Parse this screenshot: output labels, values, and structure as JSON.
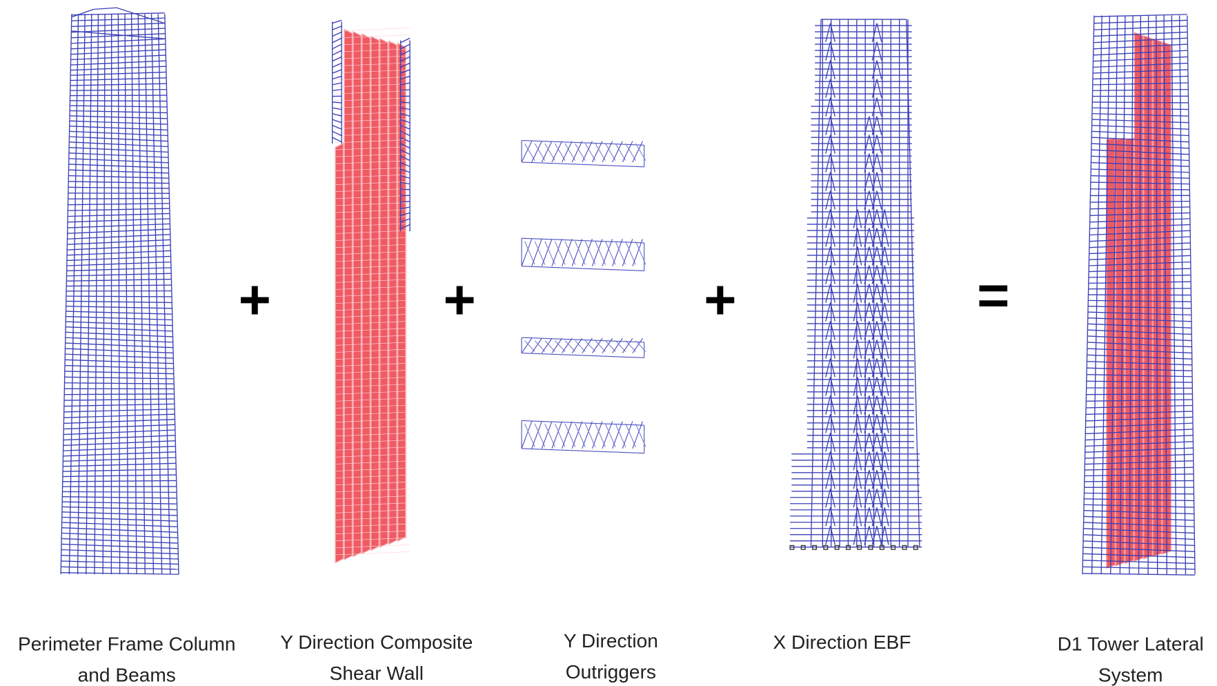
{
  "components": [
    {
      "label": [
        "Perimeter Frame Column",
        "and Beams"
      ]
    },
    {
      "label": [
        "Y Direction Composite",
        "Shear Wall"
      ]
    },
    {
      "label": [
        "Y Direction",
        "Outriggers"
      ]
    },
    {
      "label": [
        "X Direction EBF"
      ]
    },
    {
      "label": [
        "D1 Tower Lateral",
        "System"
      ]
    }
  ],
  "operators": [
    "+",
    "+",
    "+",
    "="
  ]
}
